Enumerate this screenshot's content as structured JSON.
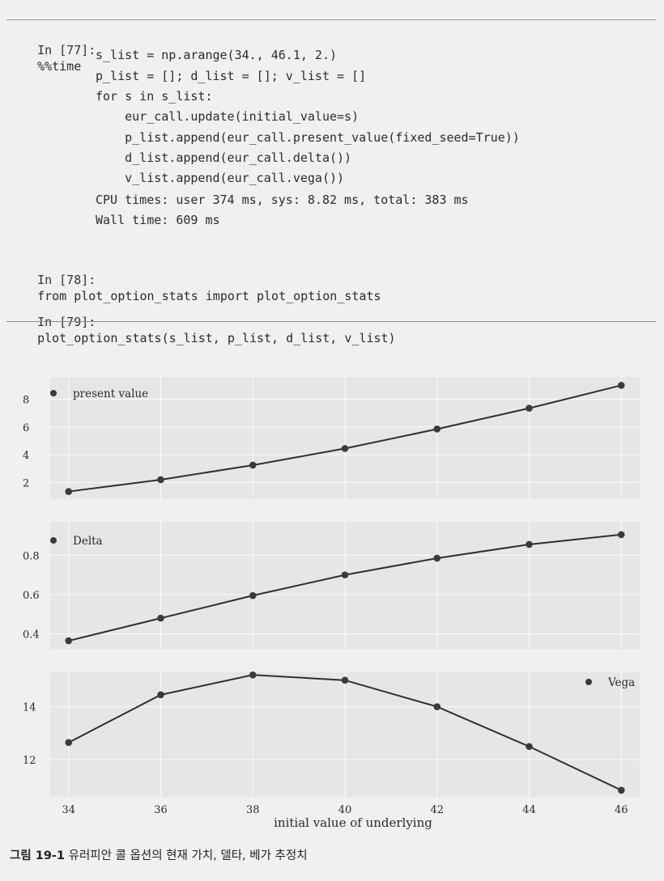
{
  "code_cells": [
    {
      "prompt": "In [77]:",
      "lines": [
        "%%time",
        "s_list = np.arange(34., 46.1, 2.)",
        "p_list = []; d_list = []; v_list = []",
        "for s in s_list:",
        "    eur_call.update(initial_value=s)",
        "    p_list.append(eur_call.present_value(fixed_seed=True))",
        "    d_list.append(eur_call.delta())",
        "    v_list.append(eur_call.vega())"
      ],
      "output": [
        "CPU times: user 374 ms, sys: 8.82 ms, total: 383 ms",
        "Wall time: 609 ms"
      ]
    },
    {
      "prompt": "In [78]:",
      "lines": [
        "from plot_option_stats import plot_option_stats"
      ],
      "output": []
    },
    {
      "prompt": "In [79]:",
      "lines": [
        "plot_option_stats(s_list, p_list, d_list, v_list)"
      ],
      "output": []
    }
  ],
  "caption": {
    "label": "그림 19-1",
    "text": "유러피안 콜 옵션의 현재 가치, 델타, 베가 추정치"
  },
  "colors": {
    "panel_bg": "#e6e6e6",
    "grid": "#fafafa",
    "line": "#2f2f2f",
    "marker": "#3a3a3a"
  },
  "chart_data": [
    {
      "type": "line",
      "x": [
        34,
        36,
        38,
        40,
        42,
        44,
        46
      ],
      "series": [
        {
          "name": "present value",
          "values": [
            1.35,
            2.2,
            3.25,
            4.45,
            5.85,
            7.35,
            9.0
          ]
        }
      ],
      "yticks": [
        2,
        4,
        6,
        8
      ],
      "ylim": [
        0.8,
        9.6
      ],
      "xlim": [
        33.6,
        46.4
      ],
      "legend": "top-left",
      "grid": true
    },
    {
      "type": "line",
      "x": [
        34,
        36,
        38,
        40,
        42,
        44,
        46
      ],
      "series": [
        {
          "name": "Delta",
          "values": [
            0.365,
            0.48,
            0.595,
            0.7,
            0.785,
            0.855,
            0.905
          ]
        }
      ],
      "yticks": [
        0.4,
        0.6,
        0.8
      ],
      "ylim": [
        0.32,
        0.97
      ],
      "xlim": [
        33.6,
        46.4
      ],
      "legend": "top-left",
      "grid": true
    },
    {
      "type": "line",
      "x": [
        34,
        36,
        38,
        40,
        42,
        44,
        46
      ],
      "series": [
        {
          "name": "Vega",
          "values": [
            12.65,
            14.45,
            15.2,
            15.0,
            14.0,
            12.5,
            10.85
          ]
        }
      ],
      "yticks": [
        12,
        14
      ],
      "ylim": [
        10.6,
        15.3
      ],
      "xlim": [
        33.6,
        46.4
      ],
      "xticks": [
        34,
        36,
        38,
        40,
        42,
        44,
        46
      ],
      "xlabel": "initial value of underlying",
      "legend": "top-right",
      "grid": true
    }
  ]
}
